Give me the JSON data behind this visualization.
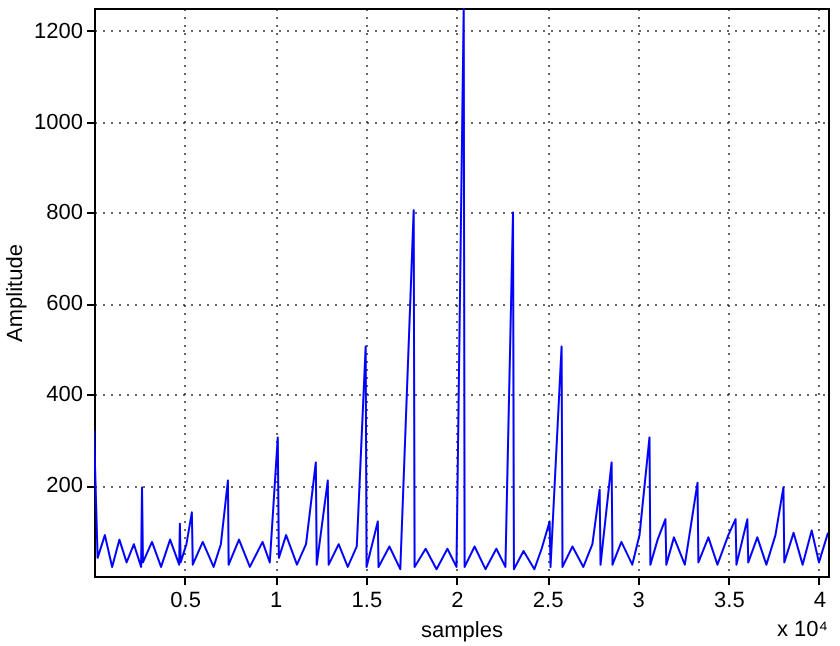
{
  "chart_data": {
    "type": "line",
    "xlabel": "samples",
    "ylabel": "Amplitude",
    "annotations": [
      "x 10⁴"
    ],
    "xlim": [
      0,
      4.05
    ],
    "ylim": [
      0,
      1250
    ],
    "xticks": [
      0.5,
      1,
      1.5,
      2,
      2.5,
      3,
      3.5,
      4
    ],
    "yticks": [
      200,
      400,
      600,
      800,
      1000,
      1200
    ],
    "grid": true,
    "line_style": "solid",
    "series": [
      {
        "color": "#0000ff",
        "x": [
          0,
          0.02,
          0.06,
          0.1,
          0.14,
          0.18,
          0.22,
          0.26,
          0.265,
          0.27,
          0.32,
          0.37,
          0.42,
          0.47,
          0.474,
          0.478,
          0.51,
          0.54,
          0.545,
          0.6,
          0.66,
          0.7,
          0.739,
          0.743,
          0.8,
          0.86,
          0.93,
          0.97,
          1.014,
          1.02,
          1.06,
          1.12,
          1.17,
          1.224,
          1.229,
          1.29,
          1.295,
          1.35,
          1.4,
          1.45,
          1.499,
          1.504,
          1.566,
          1.57,
          1.63,
          1.69,
          1.764,
          1.769,
          1.83,
          1.89,
          1.95,
          2,
          2.04,
          2.045,
          2.1,
          2.16,
          2.22,
          2.27,
          2.312,
          2.317,
          2.37,
          2.43,
          2.47,
          2.514,
          2.519,
          2.58,
          2.585,
          2.64,
          2.7,
          2.75,
          2.79,
          2.795,
          2.856,
          2.861,
          2.91,
          2.97,
          3.01,
          3.065,
          3.07,
          3.11,
          3.153,
          3.158,
          3.2,
          3.26,
          3.33,
          3.335,
          3.39,
          3.44,
          3.5,
          3.54,
          3.545,
          3.605,
          3.61,
          3.66,
          3.71,
          3.76,
          3.804,
          3.809,
          3.86,
          3.91,
          3.96,
          4,
          4.05
        ],
        "values": [
          320,
          40,
          90,
          20,
          80,
          30,
          70,
          20,
          195,
          30,
          75,
          20,
          80,
          25,
          115,
          30,
          70,
          140,
          25,
          75,
          20,
          70,
          210,
          25,
          80,
          20,
          75,
          30,
          305,
          40,
          90,
          25,
          70,
          250,
          25,
          210,
          25,
          70,
          20,
          65,
          505,
          20,
          120,
          20,
          65,
          15,
          805,
          20,
          60,
          15,
          60,
          20,
          1250,
          20,
          65,
          15,
          60,
          20,
          800,
          15,
          55,
          15,
          60,
          120,
          20,
          505,
          20,
          65,
          20,
          70,
          190,
          25,
          250,
          25,
          75,
          25,
          90,
          305,
          25,
          80,
          125,
          25,
          85,
          25,
          205,
          30,
          85,
          25,
          90,
          125,
          25,
          125,
          30,
          85,
          25,
          90,
          195,
          30,
          95,
          25,
          100,
          30,
          95
        ]
      }
    ]
  }
}
